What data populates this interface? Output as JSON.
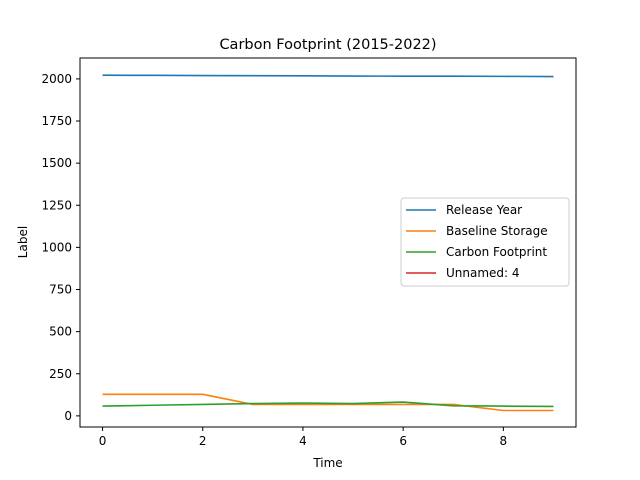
{
  "chart_data": {
    "type": "line",
    "title": "Carbon Footprint (2015-2022)",
    "xlabel": "Time",
    "ylabel": "Label",
    "x": [
      0,
      1,
      2,
      3,
      4,
      5,
      6,
      7,
      8,
      9
    ],
    "xticks": [
      0,
      2,
      4,
      6,
      8
    ],
    "yticks": [
      0,
      250,
      500,
      750,
      1000,
      1250,
      1500,
      1750,
      2000
    ],
    "xlim": [
      -0.45,
      9.45
    ],
    "ylim": [
      -66,
      2124
    ],
    "grid": false,
    "legend_position": "center-right",
    "series": [
      {
        "name": "Release Year",
        "color": "#1f77b4",
        "values": [
          2022,
          2021,
          2020,
          2019,
          2018,
          2017,
          2016,
          2016,
          2015,
          2014
        ]
      },
      {
        "name": "Baseline Storage",
        "color": "#ff7f0e",
        "values": [
          128,
          128,
          128,
          68,
          68,
          68,
          68,
          68,
          32,
          32
        ]
      },
      {
        "name": "Carbon Footprint",
        "color": "#2ca02c",
        "values": [
          58,
          63,
          68,
          73,
          76,
          73,
          82,
          60,
          58,
          56
        ]
      },
      {
        "name": "Unnamed: 4",
        "color": "#d62728",
        "values": [
          null,
          null,
          null,
          null,
          null,
          null,
          null,
          null,
          null,
          null
        ]
      }
    ]
  }
}
